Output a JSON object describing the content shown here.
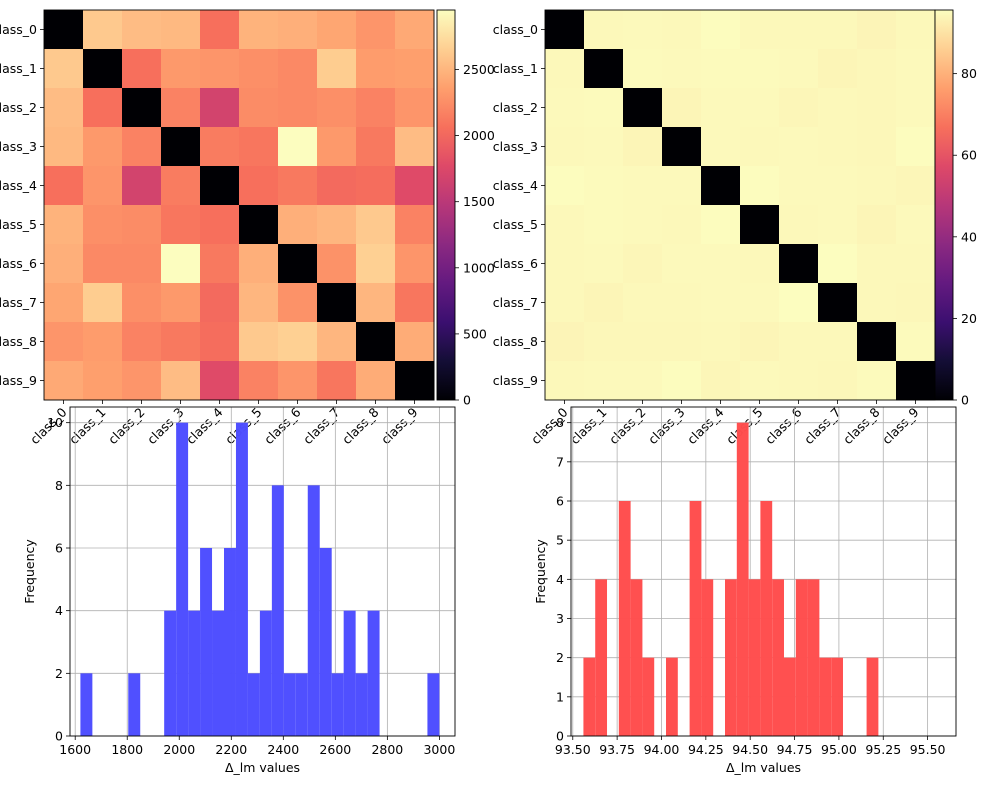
{
  "chart_data": [
    {
      "type": "heatmap",
      "title": "",
      "colormap": "magma",
      "rows": [
        "class_0",
        "class_1",
        "class_2",
        "class_3",
        "class_4",
        "class_5",
        "class_6",
        "class_7",
        "class_8",
        "class_9"
      ],
      "cols": [
        "class_0",
        "class_1",
        "class_2",
        "class_3",
        "class_4",
        "class_5",
        "class_6",
        "class_7",
        "class_8",
        "class_9"
      ],
      "vmin": 0,
      "vmax": 2950,
      "colorbar_ticks": [
        0,
        500,
        1000,
        1500,
        2000,
        2500
      ],
      "values": [
        [
          0,
          2620,
          2540,
          2520,
          2060,
          2480,
          2460,
          2400,
          2300,
          2420
        ],
        [
          2620,
          0,
          2060,
          2320,
          2300,
          2260,
          2220,
          2640,
          2340,
          2360
        ],
        [
          2540,
          2060,
          0,
          2180,
          1680,
          2240,
          2220,
          2260,
          2180,
          2300
        ],
        [
          2520,
          2320,
          2180,
          0,
          2140,
          2100,
          2950,
          2320,
          2120,
          2540
        ],
        [
          2060,
          2300,
          1680,
          2140,
          0,
          2060,
          2120,
          2020,
          2040,
          1780
        ],
        [
          2480,
          2260,
          2240,
          2100,
          2060,
          0,
          2460,
          2500,
          2620,
          2180
        ],
        [
          2460,
          2220,
          2220,
          2950,
          2120,
          2460,
          0,
          2280,
          2660,
          2300
        ],
        [
          2400,
          2640,
          2260,
          2320,
          2020,
          2500,
          2280,
          0,
          2500,
          2100
        ],
        [
          2300,
          2340,
          2180,
          2120,
          2040,
          2620,
          2660,
          2500,
          0,
          2440
        ],
        [
          2420,
          2360,
          2300,
          2540,
          1780,
          2180,
          2300,
          2100,
          2440,
          0
        ]
      ]
    },
    {
      "type": "heatmap",
      "title": "",
      "colormap": "magma",
      "rows": [
        "class_0",
        "class_1",
        "class_2",
        "class_3",
        "class_4",
        "class_5",
        "class_6",
        "class_7",
        "class_8",
        "class_9"
      ],
      "cols": [
        "class_0",
        "class_1",
        "class_2",
        "class_3",
        "class_4",
        "class_5",
        "class_6",
        "class_7",
        "class_8",
        "class_9"
      ],
      "vmin": 0,
      "vmax": 95.6,
      "colorbar_ticks": [
        0,
        20,
        40,
        60,
        80
      ],
      "values": [
        [
          0,
          94.6,
          94.7,
          94.6,
          95.4,
          94.6,
          94.5,
          94.5,
          93.8,
          94.6
        ],
        [
          94.6,
          0,
          94.9,
          94.7,
          94.9,
          95.0,
          94.8,
          94.0,
          94.3,
          94.8
        ],
        [
          94.7,
          94.9,
          0,
          93.9,
          94.8,
          94.7,
          94.1,
          94.6,
          94.4,
          94.8
        ],
        [
          94.6,
          94.7,
          93.9,
          0,
          94.8,
          94.6,
          94.8,
          94.6,
          94.4,
          95.3
        ],
        [
          95.4,
          94.9,
          94.8,
          94.8,
          0,
          95.3,
          94.7,
          94.7,
          94.5,
          94.2
        ],
        [
          94.6,
          95.0,
          94.7,
          94.6,
          95.3,
          0,
          94.6,
          94.8,
          94.0,
          94.8
        ],
        [
          94.5,
          94.8,
          94.1,
          94.8,
          94.7,
          94.6,
          0,
          95.5,
          94.5,
          94.6
        ],
        [
          94.5,
          94.0,
          94.6,
          94.6,
          94.7,
          94.8,
          95.5,
          0,
          94.5,
          94.4
        ],
        [
          93.8,
          94.3,
          94.4,
          94.4,
          94.5,
          94.0,
          94.5,
          94.5,
          0,
          94.9
        ],
        [
          94.6,
          94.8,
          94.8,
          95.3,
          94.2,
          94.8,
          94.6,
          94.4,
          94.9,
          0
        ]
      ]
    },
    {
      "type": "bar",
      "subtype": "histogram",
      "title": "",
      "xlabel": "Δ_lm values",
      "ylabel": "Frequency",
      "color": "#4d4dff",
      "xlim": [
        1580,
        3060
      ],
      "ylim": [
        0,
        10.5
      ],
      "xticks": [
        1600,
        1800,
        2000,
        2200,
        2400,
        2600,
        2800,
        3000
      ],
      "yticks": [
        0,
        2,
        4,
        6,
        8,
        10
      ],
      "grid": true,
      "bin_start": 1620,
      "bin_width": 46,
      "counts": [
        2,
        0,
        0,
        0,
        2,
        0,
        0,
        4,
        10,
        4,
        6,
        4,
        6,
        10,
        2,
        4,
        8,
        2,
        2,
        8,
        6,
        2,
        4,
        2,
        4,
        0,
        0,
        0,
        0,
        2
      ]
    },
    {
      "type": "bar",
      "subtype": "histogram",
      "title": "",
      "xlabel": "Δ_lm values",
      "ylabel": "Frequency",
      "color": "#ff4d4d",
      "xlim": [
        93.49,
        95.66
      ],
      "ylim": [
        0,
        8.4
      ],
      "xticks": [
        93.5,
        93.75,
        94.0,
        94.25,
        94.5,
        94.75,
        95.0,
        95.25,
        95.5
      ],
      "xtick_labels": [
        "93.50",
        "93.75",
        "94.00",
        "94.25",
        "94.50",
        "94.75",
        "95.00",
        "95.25",
        "95.50"
      ],
      "yticks": [
        0,
        1,
        2,
        3,
        4,
        5,
        6,
        7,
        8
      ],
      "grid": true,
      "bin_start": 93.56,
      "bin_width": 0.0665,
      "counts": [
        2,
        4,
        0,
        6,
        4,
        2,
        0,
        2,
        0,
        6,
        4,
        0,
        4,
        8,
        4,
        6,
        4,
        2,
        4,
        4,
        2,
        2,
        0,
        0,
        2
      ]
    }
  ]
}
